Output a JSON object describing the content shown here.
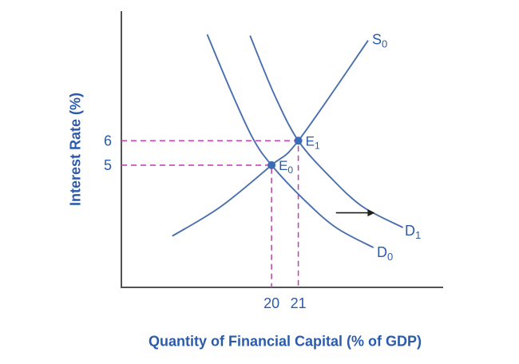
{
  "chart_data": {
    "type": "line",
    "xlabel": "Quantity of Financial Capital (% of GDP)",
    "ylabel": "Interest Rate (%)",
    "xlim": [
      14.4,
      26.4
    ],
    "ylim": [
      0,
      11.3
    ],
    "grid": false,
    "legend": false,
    "x_ticks": [
      {
        "value": 20,
        "label": "20"
      },
      {
        "value": 21,
        "label": "21"
      }
    ],
    "y_ticks": [
      {
        "value": 5,
        "label": "5"
      },
      {
        "value": 6,
        "label": "6"
      }
    ],
    "series": [
      {
        "id": "S0",
        "role": "supply",
        "label_base": "S",
        "label_sub": "0",
        "points": [
          [
            16.3,
            2.1
          ],
          [
            18.1,
            3.3
          ],
          [
            20,
            5
          ],
          [
            21,
            6
          ],
          [
            23.6,
            10.1
          ]
        ],
        "label_at": [
          23.75,
          9.95
        ]
      },
      {
        "id": "D0",
        "role": "demand",
        "label_base": "D",
        "label_sub": "0",
        "points": [
          [
            17.6,
            10.35
          ],
          [
            18.5,
            8.0
          ],
          [
            19.3,
            6.1
          ],
          [
            20,
            5
          ],
          [
            21.2,
            3.6
          ],
          [
            22.4,
            2.45
          ],
          [
            23.8,
            1.63
          ]
        ],
        "label_at": [
          23.93,
          1.24
        ]
      },
      {
        "id": "D1",
        "role": "demand",
        "label_base": "D",
        "label_sub": "1",
        "points": [
          [
            19.2,
            10.3
          ],
          [
            20.1,
            7.9
          ],
          [
            21,
            6
          ],
          [
            22.2,
            4.5
          ],
          [
            23.4,
            3.3
          ],
          [
            24.9,
            2.45
          ]
        ],
        "label_at": [
          24.97,
          2.12
        ]
      }
    ],
    "equilibria": [
      {
        "id": "E0",
        "label_base": "E",
        "label_sub": "0",
        "x": 20,
        "y": 5
      },
      {
        "id": "E1",
        "label_base": "E",
        "label_sub": "1",
        "x": 21,
        "y": 6
      }
    ],
    "shift_arrow": {
      "from": [
        22.4,
        3.05
      ],
      "to": [
        23.85,
        3.05
      ]
    },
    "colors": {
      "curve": "#4a6fad",
      "text": "#2b5bab",
      "dashed": "#bb4bb0",
      "point": "#3c6ab5",
      "axis": "#525254",
      "arrow": "#1f1f1f"
    }
  }
}
